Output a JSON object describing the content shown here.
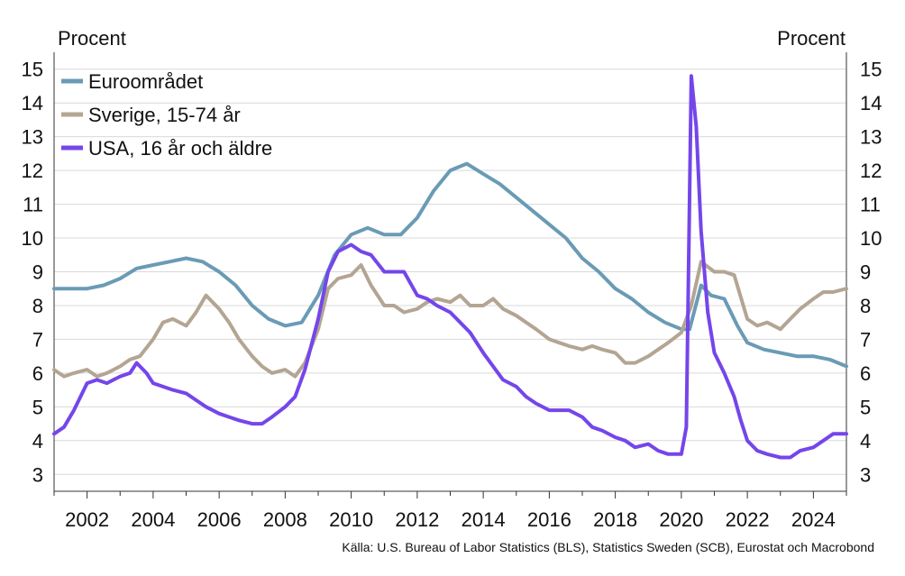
{
  "chart_data": {
    "type": "line",
    "y_unit_left": "Procent",
    "y_unit_right": "Procent",
    "source": "Källa: U.S. Bureau of Labor Statistics (BLS), Statistics Sweden (SCB), Eurostat och Macrobond",
    "ylim": [
      2.5,
      15.5
    ],
    "xlim": [
      2001.0,
      2025.0
    ],
    "y_ticks": [
      3,
      4,
      5,
      6,
      7,
      8,
      9,
      10,
      11,
      12,
      13,
      14,
      15
    ],
    "x_ticks": [
      2002,
      2004,
      2006,
      2008,
      2010,
      2012,
      2014,
      2016,
      2018,
      2020,
      2022,
      2024
    ],
    "grid": true,
    "legend_position": "top-left",
    "series": [
      {
        "name": "Euroområdet",
        "color": "#6a9bb5",
        "points": [
          [
            2001.0,
            8.5
          ],
          [
            2001.5,
            8.5
          ],
          [
            2002.0,
            8.5
          ],
          [
            2002.5,
            8.6
          ],
          [
            2003.0,
            8.8
          ],
          [
            2003.5,
            9.1
          ],
          [
            2004.0,
            9.2
          ],
          [
            2004.5,
            9.3
          ],
          [
            2005.0,
            9.4
          ],
          [
            2005.5,
            9.3
          ],
          [
            2006.0,
            9.0
          ],
          [
            2006.5,
            8.6
          ],
          [
            2007.0,
            8.0
          ],
          [
            2007.5,
            7.6
          ],
          [
            2008.0,
            7.4
          ],
          [
            2008.5,
            7.5
          ],
          [
            2009.0,
            8.3
          ],
          [
            2009.5,
            9.5
          ],
          [
            2010.0,
            10.1
          ],
          [
            2010.5,
            10.3
          ],
          [
            2011.0,
            10.1
          ],
          [
            2011.5,
            10.1
          ],
          [
            2012.0,
            10.6
          ],
          [
            2012.5,
            11.4
          ],
          [
            2013.0,
            12.0
          ],
          [
            2013.5,
            12.2
          ],
          [
            2014.0,
            11.9
          ],
          [
            2014.5,
            11.6
          ],
          [
            2015.0,
            11.2
          ],
          [
            2015.5,
            10.8
          ],
          [
            2016.0,
            10.4
          ],
          [
            2016.5,
            10.0
          ],
          [
            2017.0,
            9.4
          ],
          [
            2017.5,
            9.0
          ],
          [
            2018.0,
            8.5
          ],
          [
            2018.5,
            8.2
          ],
          [
            2019.0,
            7.8
          ],
          [
            2019.5,
            7.5
          ],
          [
            2020.0,
            7.3
          ],
          [
            2020.25,
            7.3
          ],
          [
            2020.6,
            8.6
          ],
          [
            2020.9,
            8.3
          ],
          [
            2021.3,
            8.2
          ],
          [
            2021.7,
            7.4
          ],
          [
            2022.0,
            6.9
          ],
          [
            2022.5,
            6.7
          ],
          [
            2023.0,
            6.6
          ],
          [
            2023.5,
            6.5
          ],
          [
            2024.0,
            6.5
          ],
          [
            2024.5,
            6.4
          ],
          [
            2025.0,
            6.2
          ]
        ]
      },
      {
        "name": "Sverige, 15-74 år",
        "color": "#b4a593",
        "points": [
          [
            2001.0,
            6.1
          ],
          [
            2001.3,
            5.9
          ],
          [
            2001.6,
            6.0
          ],
          [
            2002.0,
            6.1
          ],
          [
            2002.3,
            5.9
          ],
          [
            2002.6,
            6.0
          ],
          [
            2003.0,
            6.2
          ],
          [
            2003.3,
            6.4
          ],
          [
            2003.6,
            6.5
          ],
          [
            2004.0,
            7.0
          ],
          [
            2004.3,
            7.5
          ],
          [
            2004.6,
            7.6
          ],
          [
            2005.0,
            7.4
          ],
          [
            2005.3,
            7.8
          ],
          [
            2005.6,
            8.3
          ],
          [
            2006.0,
            7.9
          ],
          [
            2006.3,
            7.5
          ],
          [
            2006.6,
            7.0
          ],
          [
            2007.0,
            6.5
          ],
          [
            2007.3,
            6.2
          ],
          [
            2007.6,
            6.0
          ],
          [
            2008.0,
            6.1
          ],
          [
            2008.3,
            5.9
          ],
          [
            2008.6,
            6.3
          ],
          [
            2009.0,
            7.3
          ],
          [
            2009.3,
            8.5
          ],
          [
            2009.6,
            8.8
          ],
          [
            2010.0,
            8.9
          ],
          [
            2010.3,
            9.2
          ],
          [
            2010.6,
            8.6
          ],
          [
            2011.0,
            8.0
          ],
          [
            2011.3,
            8.0
          ],
          [
            2011.6,
            7.8
          ],
          [
            2012.0,
            7.9
          ],
          [
            2012.3,
            8.1
          ],
          [
            2012.6,
            8.2
          ],
          [
            2013.0,
            8.1
          ],
          [
            2013.3,
            8.3
          ],
          [
            2013.6,
            8.0
          ],
          [
            2014.0,
            8.0
          ],
          [
            2014.3,
            8.2
          ],
          [
            2014.6,
            7.9
          ],
          [
            2015.0,
            7.7
          ],
          [
            2015.3,
            7.5
          ],
          [
            2015.6,
            7.3
          ],
          [
            2016.0,
            7.0
          ],
          [
            2016.3,
            6.9
          ],
          [
            2016.6,
            6.8
          ],
          [
            2017.0,
            6.7
          ],
          [
            2017.3,
            6.8
          ],
          [
            2017.6,
            6.7
          ],
          [
            2018.0,
            6.6
          ],
          [
            2018.3,
            6.3
          ],
          [
            2018.6,
            6.3
          ],
          [
            2019.0,
            6.5
          ],
          [
            2019.3,
            6.7
          ],
          [
            2019.6,
            6.9
          ],
          [
            2020.0,
            7.2
          ],
          [
            2020.3,
            8.0
          ],
          [
            2020.6,
            9.3
          ],
          [
            2021.0,
            9.0
          ],
          [
            2021.3,
            9.0
          ],
          [
            2021.6,
            8.9
          ],
          [
            2022.0,
            7.6
          ],
          [
            2022.3,
            7.4
          ],
          [
            2022.6,
            7.5
          ],
          [
            2023.0,
            7.3
          ],
          [
            2023.3,
            7.6
          ],
          [
            2023.6,
            7.9
          ],
          [
            2024.0,
            8.2
          ],
          [
            2024.3,
            8.4
          ],
          [
            2024.6,
            8.4
          ],
          [
            2025.0,
            8.5
          ]
        ]
      },
      {
        "name": "USA, 16 år och äldre",
        "color": "#7446ea",
        "points": [
          [
            2001.0,
            4.2
          ],
          [
            2001.3,
            4.4
          ],
          [
            2001.6,
            4.9
          ],
          [
            2002.0,
            5.7
          ],
          [
            2002.3,
            5.8
          ],
          [
            2002.6,
            5.7
          ],
          [
            2003.0,
            5.9
          ],
          [
            2003.3,
            6.0
          ],
          [
            2003.5,
            6.3
          ],
          [
            2003.8,
            6.0
          ],
          [
            2004.0,
            5.7
          ],
          [
            2004.3,
            5.6
          ],
          [
            2004.6,
            5.5
          ],
          [
            2005.0,
            5.4
          ],
          [
            2005.3,
            5.2
          ],
          [
            2005.6,
            5.0
          ],
          [
            2006.0,
            4.8
          ],
          [
            2006.3,
            4.7
          ],
          [
            2006.6,
            4.6
          ],
          [
            2007.0,
            4.5
          ],
          [
            2007.3,
            4.5
          ],
          [
            2007.6,
            4.7
          ],
          [
            2008.0,
            5.0
          ],
          [
            2008.3,
            5.3
          ],
          [
            2008.6,
            6.1
          ],
          [
            2009.0,
            7.6
          ],
          [
            2009.3,
            9.0
          ],
          [
            2009.6,
            9.6
          ],
          [
            2010.0,
            9.8
          ],
          [
            2010.3,
            9.6
          ],
          [
            2010.6,
            9.5
          ],
          [
            2011.0,
            9.0
          ],
          [
            2011.3,
            9.0
          ],
          [
            2011.6,
            9.0
          ],
          [
            2012.0,
            8.3
          ],
          [
            2012.3,
            8.2
          ],
          [
            2012.6,
            8.0
          ],
          [
            2013.0,
            7.8
          ],
          [
            2013.3,
            7.5
          ],
          [
            2013.6,
            7.2
          ],
          [
            2014.0,
            6.6
          ],
          [
            2014.3,
            6.2
          ],
          [
            2014.6,
            5.8
          ],
          [
            2015.0,
            5.6
          ],
          [
            2015.3,
            5.3
          ],
          [
            2015.6,
            5.1
          ],
          [
            2016.0,
            4.9
          ],
          [
            2016.3,
            4.9
          ],
          [
            2016.6,
            4.9
          ],
          [
            2017.0,
            4.7
          ],
          [
            2017.3,
            4.4
          ],
          [
            2017.6,
            4.3
          ],
          [
            2018.0,
            4.1
          ],
          [
            2018.3,
            4.0
          ],
          [
            2018.6,
            3.8
          ],
          [
            2019.0,
            3.9
          ],
          [
            2019.3,
            3.7
          ],
          [
            2019.6,
            3.6
          ],
          [
            2020.0,
            3.6
          ],
          [
            2020.15,
            4.4
          ],
          [
            2020.3,
            14.8
          ],
          [
            2020.45,
            13.3
          ],
          [
            2020.6,
            10.2
          ],
          [
            2020.8,
            7.8
          ],
          [
            2021.0,
            6.6
          ],
          [
            2021.3,
            6.0
          ],
          [
            2021.6,
            5.3
          ],
          [
            2021.8,
            4.6
          ],
          [
            2022.0,
            4.0
          ],
          [
            2022.3,
            3.7
          ],
          [
            2022.6,
            3.6
          ],
          [
            2023.0,
            3.5
          ],
          [
            2023.3,
            3.5
          ],
          [
            2023.6,
            3.7
          ],
          [
            2024.0,
            3.8
          ],
          [
            2024.3,
            4.0
          ],
          [
            2024.6,
            4.2
          ],
          [
            2025.0,
            4.2
          ]
        ]
      }
    ]
  }
}
